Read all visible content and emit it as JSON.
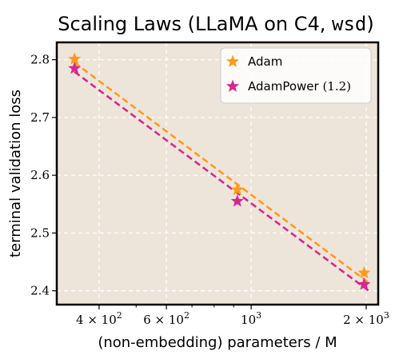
{
  "chart_data": {
    "type": "line",
    "title_prefix": "Scaling Laws (LLaMA on C4, ",
    "title_code": "wsd",
    "title_suffix": ")",
    "xlabel": "(non-embedding) parameters / M",
    "ylabel": "terminal validation loss",
    "xscale": "log",
    "xlim": [
      310,
      2150
    ],
    "ylim": [
      2.376,
      2.83
    ],
    "background_color": "#ede5da",
    "grid": true,
    "grid_color": "#ffffff",
    "legend_position": "top-right",
    "xticks": [
      {
        "value": 400,
        "mantissa": "4",
        "exp": "2"
      },
      {
        "value": 600,
        "mantissa": "6",
        "exp": "2"
      },
      {
        "value": 1000,
        "mantissa": "",
        "exp": "3"
      },
      {
        "value": 2000,
        "mantissa": "2",
        "exp": "3"
      }
    ],
    "yticks": [
      "2.4",
      "2.5",
      "2.6",
      "2.7",
      "2.8"
    ],
    "series": [
      {
        "name": "Adam",
        "name_suffix": "",
        "color": "#ff9a1a",
        "marker": "star",
        "x": [
          345,
          920,
          1975
        ],
        "y": [
          2.801,
          2.575,
          2.431
        ],
        "fit_x": [
          345,
          2040
        ],
        "fit_y": [
          2.795,
          2.413
        ]
      },
      {
        "name": "AdamPower",
        "name_suffix": "(1.2)",
        "color": "#d4288f",
        "marker": "star",
        "x": [
          345,
          920,
          1975
        ],
        "y": [
          2.785,
          2.555,
          2.411
        ],
        "fit_x": [
          345,
          2040
        ],
        "fit_y": [
          2.779,
          2.399
        ]
      }
    ]
  }
}
